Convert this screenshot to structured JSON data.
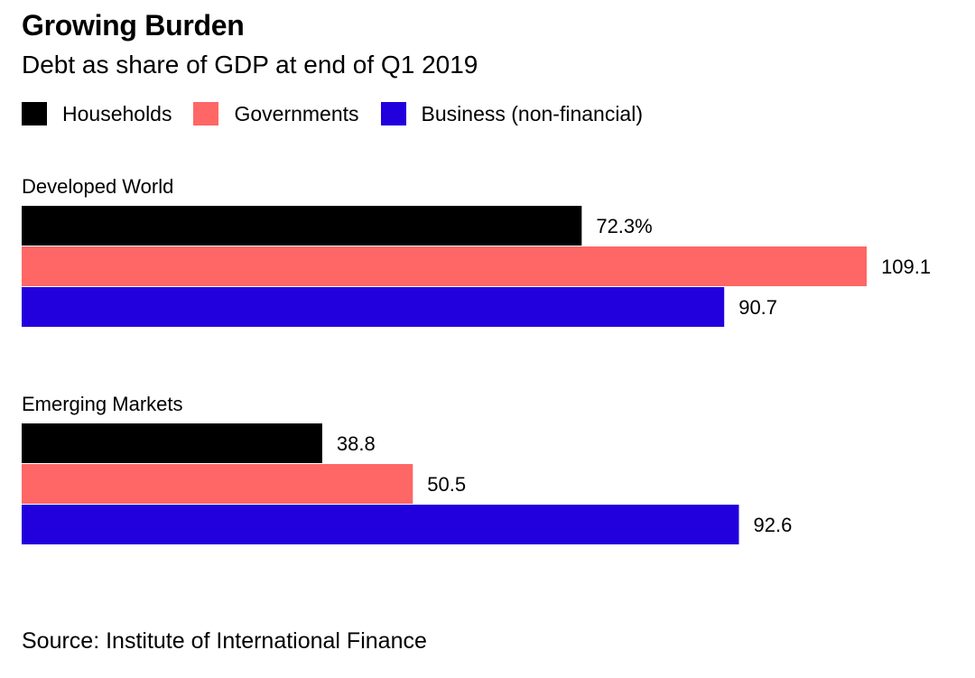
{
  "chart_data": {
    "type": "bar",
    "orientation": "horizontal",
    "title": "Growing Burden",
    "subtitle": "Debt as share of GDP at end of Q1 2019",
    "legend_position": "top-left",
    "grid": false,
    "xlim": [
      0,
      115
    ],
    "categories": [
      "Developed World",
      "Emerging Markets"
    ],
    "series": [
      {
        "name": "Households",
        "color": "#000000",
        "values": [
          72.3,
          38.8
        ],
        "labels": [
          "72.3%",
          "38.8"
        ]
      },
      {
        "name": "Governments",
        "color": "#ff6666",
        "values": [
          109.1,
          50.5
        ],
        "labels": [
          "109.1",
          "50.5"
        ]
      },
      {
        "name": "Business (non-financial)",
        "color": "#2200dd",
        "values": [
          90.7,
          92.6
        ],
        "labels": [
          "90.7",
          "92.6"
        ]
      }
    ],
    "source": "Source: Institute of International Finance"
  }
}
